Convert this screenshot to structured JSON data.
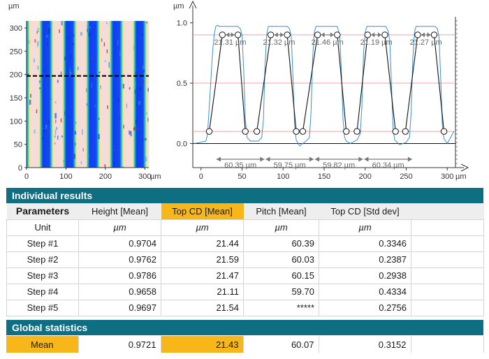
{
  "heatmap": {
    "unit_y": "µm",
    "unit_x": "µm",
    "y_ticks": [
      "0",
      "50",
      "100",
      "150",
      "200",
      "250",
      "300"
    ],
    "x_ticks": [
      "0",
      "100",
      "200",
      "300"
    ],
    "x_tick_values": [
      0,
      100,
      200,
      300
    ],
    "x_tick_minor": [
      "50",
      "150",
      "250"
    ],
    "y_range": [
      0,
      315
    ],
    "x_range": [
      0,
      310
    ],
    "profile_line_y": 197,
    "colors": {
      "low": "#0f3ef0",
      "mid": "#1fd0c8",
      "high": "#f6dcd8",
      "edge": "#ffe15a"
    }
  },
  "chart_data": {
    "type": "line",
    "title": "",
    "xlabel": "µm",
    "ylabel": "µm",
    "xlim": [
      -10,
      310
    ],
    "ylim": [
      -0.2,
      1.05
    ],
    "x_ticks": [
      "0",
      "50",
      "100",
      "150",
      "200",
      "250",
      "300"
    ],
    "x_tick_values": [
      0,
      50,
      100,
      150,
      200,
      250,
      300
    ],
    "y_ticks": [
      "0.0",
      "0.5",
      "1.0"
    ],
    "y_tick_values": [
      0.0,
      0.5,
      1.0
    ],
    "series": [
      {
        "x": [
          -8,
          6,
          8,
          10,
          14,
          16,
          18,
          20,
          22,
          45,
          48,
          50,
          52,
          54,
          56,
          60,
          70,
          74,
          76,
          78,
          80,
          82,
          105,
          108,
          110,
          112,
          114,
          116,
          120,
          128,
          132,
          134,
          136,
          138,
          140,
          143,
          166,
          169,
          171,
          173,
          175,
          177,
          182,
          190,
          194,
          196,
          198,
          200,
          202,
          225,
          228,
          230,
          232,
          234,
          236,
          242,
          250,
          254,
          256,
          258,
          260,
          262,
          285,
          288,
          290,
          292,
          294,
          296,
          300,
          308
        ],
        "y": [
          0.0,
          0.02,
          0.08,
          0.3,
          0.75,
          0.9,
          0.97,
          0.98,
          0.97,
          0.97,
          0.95,
          0.9,
          0.6,
          0.2,
          0.05,
          0.02,
          0.02,
          0.05,
          0.2,
          0.65,
          0.9,
          0.97,
          0.97,
          0.95,
          0.88,
          0.55,
          0.15,
          0.03,
          -0.02,
          0.02,
          0.05,
          0.25,
          0.7,
          0.92,
          0.97,
          0.97,
          0.97,
          0.9,
          0.6,
          0.2,
          0.05,
          0.02,
          0.0,
          0.03,
          0.08,
          0.3,
          0.75,
          0.92,
          0.97,
          0.97,
          0.93,
          0.85,
          0.5,
          0.12,
          0.03,
          -0.01,
          0.01,
          0.05,
          0.25,
          0.7,
          0.92,
          0.97,
          0.97,
          0.95,
          0.88,
          0.55,
          0.15,
          0.04,
          0.0,
          0.1
        ]
      }
    ],
    "mean_lines": [
      0.0,
      0.5,
      0.9,
      0.1
    ],
    "top_cd_points_x": [
      [
        26,
        45
      ],
      [
        85,
        105
      ],
      [
        142,
        166
      ],
      [
        203,
        224
      ],
      [
        264,
        284
      ]
    ],
    "bottom_points_x": [
      [
        10,
        54
      ],
      [
        68,
        116
      ],
      [
        124,
        177
      ],
      [
        190,
        237
      ],
      [
        249,
        296
      ]
    ],
    "top_cd_labels": [
      "21.31 µm",
      "21.32 µm",
      "21.46 µm",
      "21.19 µm",
      "21.27 µm"
    ],
    "pitch_labels": [
      "60.35 µm",
      "59.75 µm",
      "59.82 µm",
      "60.34 µm"
    ],
    "pitch_spans_x": [
      [
        18,
        78
      ],
      [
        78,
        138
      ],
      [
        138,
        198
      ],
      [
        198,
        258
      ]
    ]
  },
  "results": {
    "title": "Individual results",
    "columns": [
      "Parameters",
      "Height [Mean]",
      "Top CD [Mean]",
      "Pitch [Mean]",
      "Top CD [Std dev]"
    ],
    "units": [
      "Unit",
      "µm",
      "µm",
      "µm",
      "µm"
    ],
    "rows": [
      [
        "Step #1",
        "0.9704",
        "21.44",
        "60.39",
        "0.3346"
      ],
      [
        "Step #2",
        "0.9762",
        "21.59",
        "60.03",
        "0.2387"
      ],
      [
        "Step #3",
        "0.9786",
        "21.47",
        "60.15",
        "0.2938"
      ],
      [
        "Step #4",
        "0.9658",
        "21.11",
        "59.70",
        "0.4334"
      ],
      [
        "Step #5",
        "0.9697",
        "21.54",
        "*****",
        "0.2756"
      ]
    ]
  },
  "global": {
    "title": "Global statistics",
    "row": [
      "Mean",
      "0.9721",
      "21.43",
      "60.07",
      "0.3152"
    ]
  }
}
